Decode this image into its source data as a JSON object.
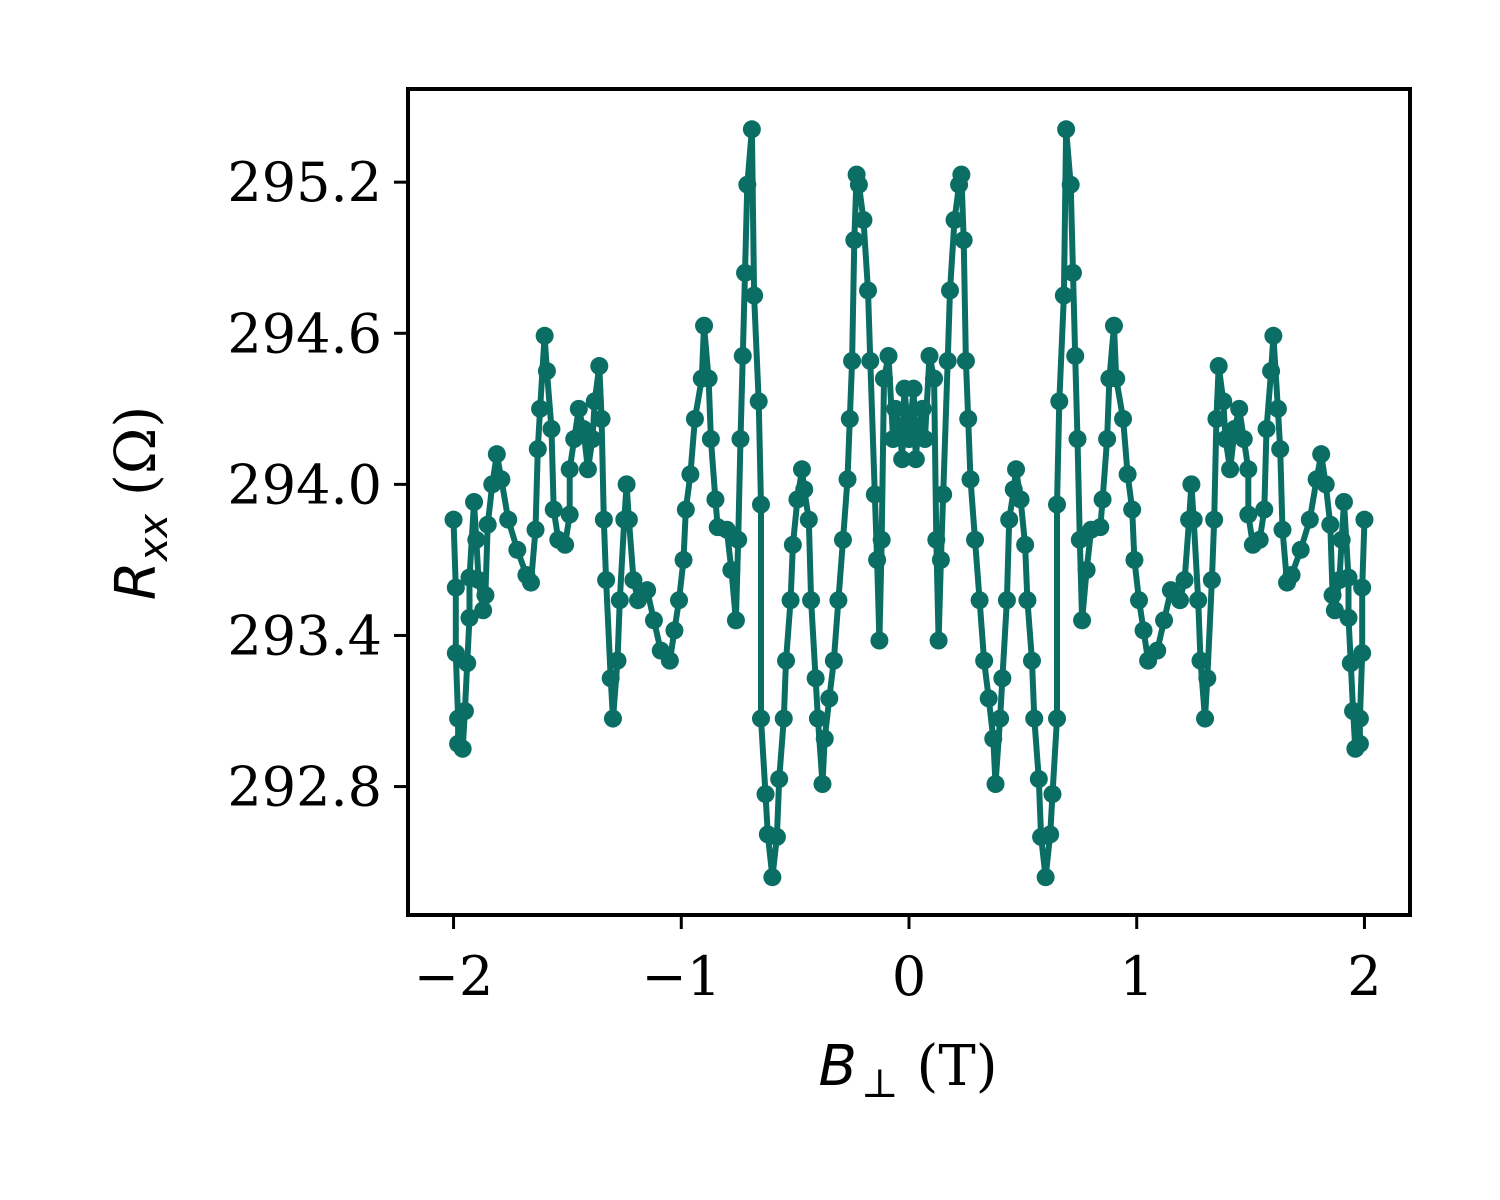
{
  "chart_data": {
    "type": "line",
    "title": "",
    "xlabel": {
      "symbol": "B",
      "sub": "⊥",
      "unit": "(T)"
    },
    "ylabel": {
      "symbol": "R",
      "sub": "xx",
      "unit": "(Ω)"
    },
    "xlim": [
      -2.2,
      2.2
    ],
    "ylim": [
      292.29,
      295.57
    ],
    "xticks": [
      -2,
      -1,
      0,
      1,
      2
    ],
    "xtick_labels": [
      "−2",
      "−1",
      "0",
      "1",
      "2"
    ],
    "yticks": [
      292.8,
      293.4,
      294.0,
      294.6,
      295.2
    ],
    "ytick_labels": [
      "292.8",
      "293.4",
      "294.0",
      "294.6",
      "295.2"
    ],
    "grid": false,
    "color": "#0a6e64",
    "marker": "circle",
    "series": [
      {
        "x": [
          -2.0,
          -1.99,
          -1.99,
          -1.98,
          -1.98,
          -1.96,
          -1.95,
          -1.94,
          -1.93,
          -1.93,
          -1.91,
          -1.9,
          -1.89,
          -1.87,
          -1.86,
          -1.85,
          -1.83,
          -1.81,
          -1.79,
          -1.76,
          -1.72,
          -1.68,
          -1.66,
          -1.64,
          -1.63,
          -1.62,
          -1.6,
          -1.59,
          -1.57,
          -1.56,
          -1.54,
          -1.51,
          -1.49,
          -1.49,
          -1.47,
          -1.45,
          -1.43,
          -1.41,
          -1.39,
          -1.38,
          -1.36,
          -1.35,
          -1.34,
          -1.33,
          -1.31,
          -1.3,
          -1.28,
          -1.27,
          -1.25,
          -1.24,
          -1.23,
          -1.21,
          -1.19,
          -1.15,
          -1.12,
          -1.09,
          -1.05,
          -1.03,
          -1.01,
          -0.99,
          -0.98,
          -0.96,
          -0.94,
          -0.91,
          -0.9,
          -0.88,
          -0.87,
          -0.85,
          -0.84,
          -0.8,
          -0.78,
          -0.76,
          -0.75,
          -0.74,
          -0.73,
          -0.72,
          -0.71,
          -0.69,
          -0.68,
          -0.66,
          -0.65,
          -0.65,
          -0.63,
          -0.62,
          -0.6,
          -0.58,
          -0.57,
          -0.55,
          -0.54,
          -0.52,
          -0.51,
          -0.49,
          -0.47,
          -0.46,
          -0.44,
          -0.43,
          -0.41,
          -0.4,
          -0.38,
          -0.37,
          -0.35,
          -0.33,
          -0.31,
          -0.29,
          -0.27,
          -0.26,
          -0.25,
          -0.24,
          -0.23,
          -0.22,
          -0.2,
          -0.18,
          -0.17,
          -0.15,
          -0.14,
          -0.13,
          -0.12,
          -0.11,
          -0.09,
          -0.07,
          -0.06,
          -0.04,
          -0.03,
          -0.02,
          0.0,
          0.02,
          0.03,
          0.04,
          0.06,
          0.07,
          0.09,
          0.11,
          0.12,
          0.13,
          0.14,
          0.15,
          0.17,
          0.18,
          0.2,
          0.22,
          0.23,
          0.24,
          0.25,
          0.26,
          0.27,
          0.29,
          0.31,
          0.33,
          0.35,
          0.37,
          0.38,
          0.4,
          0.41,
          0.43,
          0.44,
          0.46,
          0.47,
          0.49,
          0.51,
          0.52,
          0.54,
          0.55,
          0.57,
          0.58,
          0.6,
          0.62,
          0.63,
          0.65,
          0.65,
          0.66,
          0.68,
          0.69,
          0.71,
          0.72,
          0.73,
          0.74,
          0.75,
          0.76,
          0.78,
          0.8,
          0.84,
          0.85,
          0.87,
          0.88,
          0.9,
          0.91,
          0.94,
          0.96,
          0.98,
          0.99,
          1.01,
          1.03,
          1.05,
          1.09,
          1.12,
          1.15,
          1.19,
          1.21,
          1.23,
          1.24,
          1.25,
          1.27,
          1.28,
          1.3,
          1.31,
          1.33,
          1.34,
          1.35,
          1.36,
          1.38,
          1.39,
          1.41,
          1.43,
          1.45,
          1.47,
          1.49,
          1.49,
          1.51,
          1.54,
          1.56,
          1.57,
          1.59,
          1.6,
          1.62,
          1.63,
          1.64,
          1.66,
          1.68,
          1.72,
          1.76,
          1.79,
          1.81,
          1.83,
          1.85,
          1.86,
          1.87,
          1.89,
          1.9,
          1.91,
          1.93,
          1.93,
          1.94,
          1.95,
          1.96,
          1.98,
          1.98,
          1.99,
          1.99,
          2.0
        ],
        "y": [
          293.86,
          293.59,
          293.33,
          293.07,
          292.97,
          292.95,
          293.1,
          293.29,
          293.47,
          293.63,
          293.93,
          293.78,
          293.62,
          293.5,
          293.56,
          293.84,
          294.0,
          294.12,
          294.02,
          293.86,
          293.74,
          293.64,
          293.61,
          293.82,
          294.14,
          294.3,
          294.59,
          294.45,
          294.22,
          293.9,
          293.78,
          293.76,
          293.88,
          294.06,
          294.18,
          294.3,
          294.22,
          294.06,
          294.18,
          294.33,
          294.47,
          294.26,
          293.86,
          293.62,
          293.23,
          293.07,
          293.3,
          293.54,
          293.86,
          294.0,
          293.86,
          293.62,
          293.54,
          293.58,
          293.46,
          293.34,
          293.3,
          293.42,
          293.54,
          293.7,
          293.9,
          294.04,
          294.26,
          294.42,
          294.63,
          294.42,
          294.18,
          293.94,
          293.83,
          293.82,
          293.66,
          293.46,
          293.78,
          294.18,
          294.51,
          294.84,
          295.19,
          295.41,
          294.75,
          294.33,
          293.92,
          293.07,
          292.77,
          292.61,
          292.44,
          292.6,
          292.83,
          293.07,
          293.3,
          293.54,
          293.76,
          293.94,
          294.06,
          293.98,
          293.86,
          293.54,
          293.23,
          293.07,
          292.81,
          292.99,
          293.15,
          293.3,
          293.54,
          293.78,
          294.02,
          294.26,
          294.49,
          294.97,
          295.23,
          295.19,
          295.05,
          294.77,
          294.49,
          293.96,
          293.7,
          293.38,
          293.78,
          294.42,
          294.51,
          294.18,
          294.3,
          294.22,
          294.1,
          294.38,
          294.18,
          294.38,
          294.1,
          294.22,
          294.3,
          294.18,
          294.51,
          294.42,
          293.78,
          293.38,
          293.7,
          293.96,
          294.49,
          294.77,
          295.05,
          295.19,
          295.23,
          294.97,
          294.49,
          294.26,
          294.02,
          293.78,
          293.54,
          293.3,
          293.15,
          292.99,
          292.81,
          293.07,
          293.23,
          293.54,
          293.86,
          293.98,
          294.06,
          293.94,
          293.76,
          293.54,
          293.3,
          293.07,
          292.83,
          292.6,
          292.44,
          292.61,
          292.77,
          293.07,
          293.92,
          294.33,
          294.75,
          295.41,
          295.19,
          294.84,
          294.51,
          294.18,
          293.78,
          293.46,
          293.66,
          293.82,
          293.83,
          293.94,
          294.18,
          294.42,
          294.63,
          294.42,
          294.26,
          294.04,
          293.9,
          293.7,
          293.54,
          293.42,
          293.3,
          293.34,
          293.46,
          293.58,
          293.54,
          293.62,
          293.86,
          294.0,
          293.86,
          293.54,
          293.3,
          293.07,
          293.23,
          293.62,
          293.86,
          294.26,
          294.47,
          294.33,
          294.18,
          294.06,
          294.22,
          294.3,
          294.18,
          294.06,
          293.88,
          293.76,
          293.78,
          293.9,
          294.22,
          294.45,
          294.59,
          294.3,
          294.14,
          293.82,
          293.61,
          293.64,
          293.74,
          293.86,
          294.02,
          294.12,
          294.0,
          293.84,
          293.56,
          293.5,
          293.62,
          293.78,
          293.93,
          293.63,
          293.47,
          293.29,
          293.1,
          292.95,
          292.97,
          293.07,
          293.33,
          293.59,
          293.86
        ]
      }
    ]
  }
}
